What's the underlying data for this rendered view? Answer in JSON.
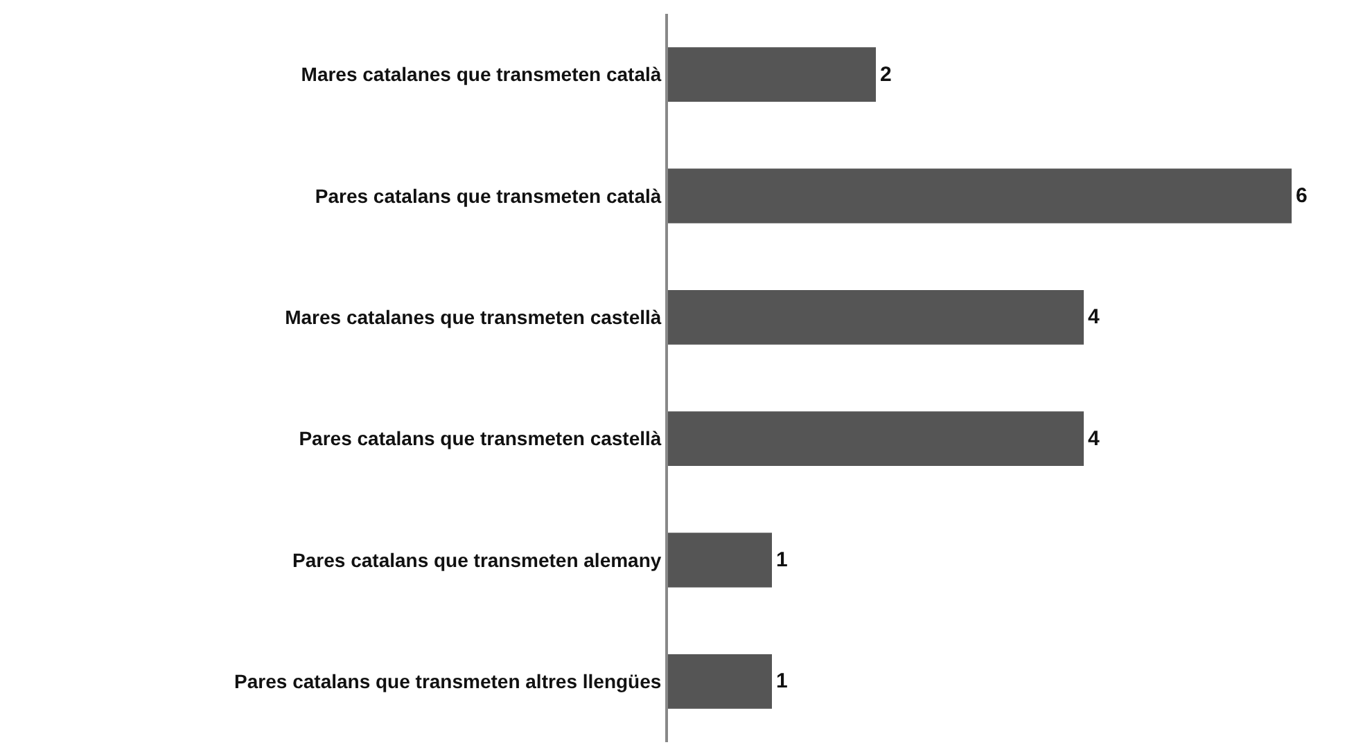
{
  "chart_data": {
    "type": "bar",
    "orientation": "horizontal",
    "categories": [
      "Mares catalanes que transmeten català",
      "Pares catalans que transmeten català",
      "Mares catalanes que transmeten castellà",
      "Pares catalans que transmeten castellà",
      "Pares catalans que transmeten alemany",
      "Pares catalans que transmeten altres llengües"
    ],
    "values": [
      2,
      6,
      4,
      4,
      1,
      1
    ],
    "color": "#555555",
    "data_labels": true
  }
}
